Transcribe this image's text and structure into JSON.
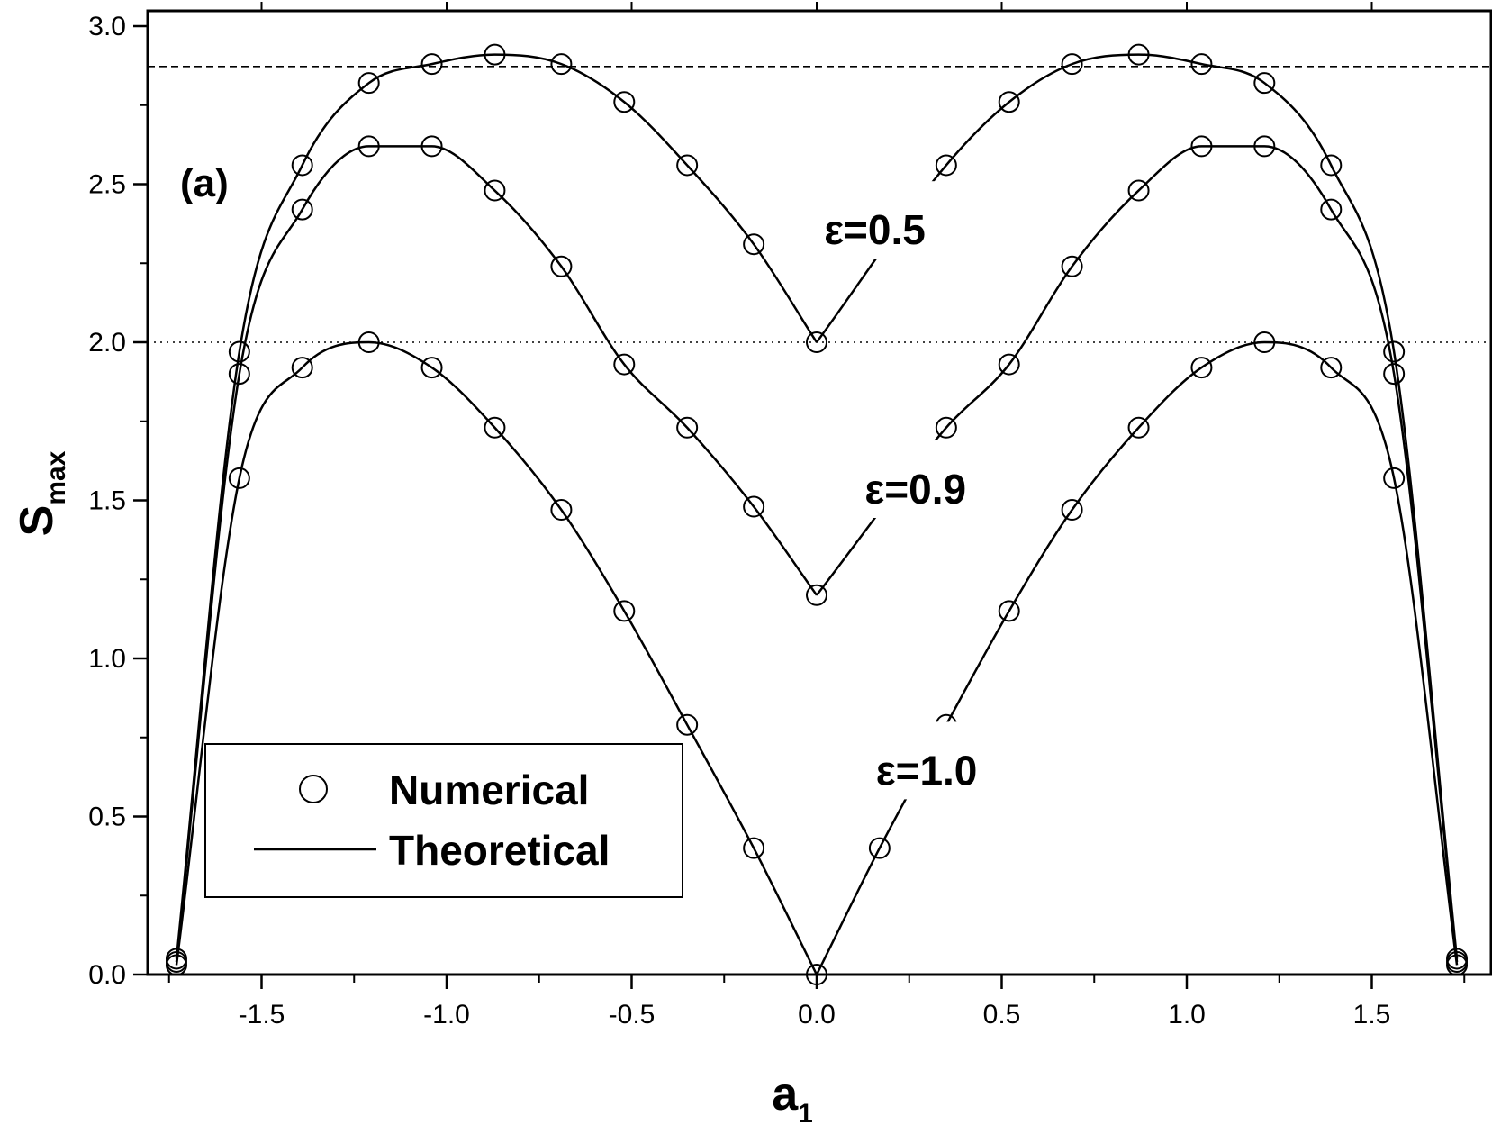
{
  "chart_data": {
    "type": "line",
    "title": "",
    "panel_label": "(a)",
    "xlabel_main": "a",
    "xlabel_sub": "1",
    "ylabel_main": "S",
    "ylabel_sub": "max",
    "xlim": [
      -1.82,
      1.82
    ],
    "ylim": [
      0.0,
      3.05
    ],
    "x_ticks": [
      -1.5,
      -1.0,
      -0.5,
      0.0,
      0.5,
      1.0,
      1.5
    ],
    "x_tick_labels": [
      "-1.5",
      "-1.0",
      "-0.5",
      "0.0",
      "0.5",
      "1.0",
      "1.5"
    ],
    "y_ticks": [
      0.0,
      0.5,
      1.0,
      1.5,
      2.0,
      2.5,
      3.0
    ],
    "y_tick_labels": [
      "0.0",
      "0.5",
      "1.0",
      "1.5",
      "2.0",
      "2.5",
      "3.0"
    ],
    "reference_lines": [
      {
        "y": 2.8723,
        "style": "dashed"
      },
      {
        "y": 2.0,
        "style": "dotted"
      }
    ],
    "annotations": [
      {
        "text": "ε=0.5",
        "x": 0.02,
        "y": 2.31
      },
      {
        "text": "ε=0.9",
        "x": 0.13,
        "y": 1.49
      },
      {
        "text": "ε=1.0",
        "x": 0.16,
        "y": 0.6
      }
    ],
    "legend": {
      "position": "bottom-left",
      "numerical_label": "Numerical",
      "theoretical_label": "Theoretical"
    },
    "series": [
      {
        "epsilon": 0.5,
        "numerical_x": [
          -1.73,
          -1.56,
          -1.39,
          -1.21,
          -1.04,
          -0.87,
          -0.69,
          -0.52,
          -0.35,
          -0.17,
          0.0,
          0.35,
          0.52,
          0.69,
          0.87,
          1.04,
          1.21,
          1.39,
          1.56,
          1.73
        ],
        "numerical_y": [
          0.05,
          1.97,
          2.56,
          2.82,
          2.88,
          2.91,
          2.88,
          2.76,
          2.56,
          2.31,
          2.0,
          2.56,
          2.76,
          2.88,
          2.91,
          2.88,
          2.82,
          2.56,
          1.97,
          0.05
        ]
      },
      {
        "epsilon": 0.9,
        "numerical_x": [
          -1.73,
          -1.56,
          -1.39,
          -1.21,
          -1.04,
          -0.87,
          -0.69,
          -0.52,
          -0.35,
          -0.17,
          0.0,
          0.35,
          0.52,
          0.69,
          0.87,
          1.04,
          1.21,
          1.39,
          1.56,
          1.73
        ],
        "numerical_y": [
          0.04,
          1.9,
          2.42,
          2.62,
          2.62,
          2.48,
          2.24,
          1.93,
          1.73,
          1.48,
          1.2,
          1.73,
          1.93,
          2.24,
          2.48,
          2.62,
          2.62,
          2.42,
          1.9,
          0.04
        ]
      },
      {
        "epsilon": 1.0,
        "numerical_x": [
          -1.73,
          -1.56,
          -1.39,
          -1.21,
          -1.04,
          -0.87,
          -0.69,
          -0.52,
          -0.35,
          -0.17,
          0.0,
          0.17,
          0.35,
          0.52,
          0.69,
          0.87,
          1.04,
          1.21,
          1.39,
          1.56,
          1.73
        ],
        "numerical_y": [
          0.03,
          1.57,
          1.92,
          2.0,
          1.92,
          1.73,
          1.47,
          1.15,
          0.79,
          0.4,
          0.0,
          0.4,
          0.79,
          1.15,
          1.47,
          1.73,
          1.92,
          2.0,
          1.92,
          1.57,
          0.03
        ]
      }
    ]
  }
}
